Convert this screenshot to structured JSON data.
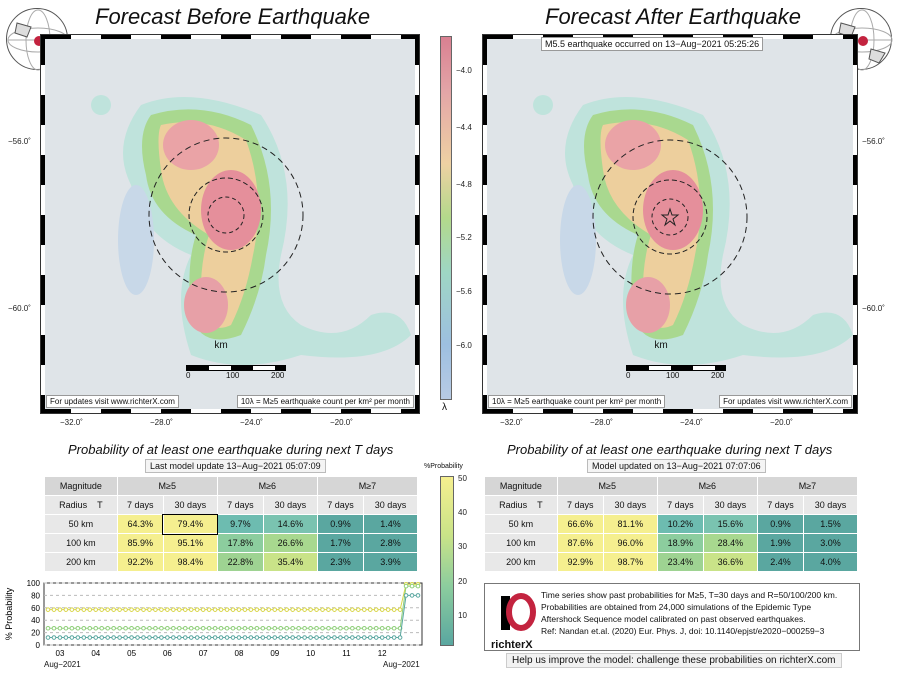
{
  "left": {
    "title": "Forecast Before Earthquake",
    "footer_left": "For updates visit www.richterX.com",
    "footer_right": "10λ = M≥5 earthquake count per km² per month",
    "lat_ticks": [
      "−56.0˚",
      "−60.0˚"
    ],
    "lon_ticks": [
      "−32.0˚",
      "−28.0˚",
      "−24.0˚",
      "−20.0˚"
    ]
  },
  "right": {
    "title": "Forecast After Earthquake",
    "event_note": "M5.5 earthquake occurred on 13−Aug−2021 05:25:26",
    "footer_left": "10λ = M≥5 earthquake count per km² per month",
    "footer_right": "For updates visit www.richterX.com",
    "lat_ticks": [
      "−56.0˚",
      "−60.0˚"
    ],
    "lon_ticks": [
      "−32.0˚",
      "−28.0˚",
      "−24.0˚",
      "−20.0˚"
    ]
  },
  "scale_bar": {
    "unit": "km",
    "labels": [
      "0",
      "100",
      "200"
    ]
  },
  "colorbar": {
    "ticks": [
      "−4.0",
      "−4.4",
      "−4.8",
      "−5.2",
      "−5.6",
      "−6.0"
    ],
    "symbol": "λ"
  },
  "prob_colorbar": {
    "title": "%Probability",
    "ticks": [
      "50",
      "40",
      "30",
      "20",
      "10"
    ]
  },
  "table_left": {
    "title": "Probability of at least one earthquake during next T days",
    "subtitle": "Last model update 13−Aug−2021 05:07:09",
    "mag_header": "Magnitude",
    "radius_header": "Radius",
    "t_header": "T",
    "mags": [
      "M≥5",
      "M≥6",
      "M≥7"
    ],
    "periods": [
      "7 days",
      "30 days",
      "7 days",
      "30 days",
      "7 days",
      "30 days"
    ],
    "rows": [
      {
        "radius": "50 km",
        "values": [
          "64.3%",
          "79.4%",
          "9.7%",
          "14.6%",
          "0.9%",
          "1.4%"
        ]
      },
      {
        "radius": "100 km",
        "values": [
          "85.9%",
          "95.1%",
          "17.8%",
          "26.6%",
          "1.7%",
          "2.8%"
        ]
      },
      {
        "radius": "200 km",
        "values": [
          "92.2%",
          "98.4%",
          "22.8%",
          "35.4%",
          "2.3%",
          "3.9%"
        ]
      }
    ]
  },
  "table_right": {
    "title": "Probability of at least one earthquake during next T days",
    "subtitle": "Model updated on 13−Aug−2021 07:07:06",
    "mag_header": "Magnitude",
    "radius_header": "Radius",
    "t_header": "T",
    "mags": [
      "M≥5",
      "M≥6",
      "M≥7"
    ],
    "periods": [
      "7 days",
      "30 days",
      "7 days",
      "30 days",
      "7 days",
      "30 days"
    ],
    "rows": [
      {
        "radius": "50 km",
        "values": [
          "66.6%",
          "81.1%",
          "10.2%",
          "15.6%",
          "0.9%",
          "1.5%"
        ]
      },
      {
        "radius": "100 km",
        "values": [
          "87.6%",
          "96.0%",
          "18.9%",
          "28.4%",
          "1.9%",
          "3.0%"
        ]
      },
      {
        "radius": "200 km",
        "values": [
          "92.9%",
          "98.7%",
          "23.4%",
          "36.6%",
          "2.4%",
          "4.0%"
        ]
      }
    ]
  },
  "chart_data": {
    "type": "line",
    "ylabel": "% Probability",
    "ylim": [
      0,
      100
    ],
    "yticks": [
      "100",
      "80",
      "60",
      "40",
      "20",
      "0"
    ],
    "xticks": [
      "03",
      "04",
      "05",
      "06",
      "07",
      "08",
      "09",
      "10",
      "11",
      "12"
    ],
    "x_start_label": "Aug−2021",
    "x_end_label": "Aug−2021",
    "series": [
      {
        "color": "#d9d64a",
        "values": [
          57,
          57,
          57,
          57,
          57,
          57,
          57,
          57,
          57,
          57,
          57,
          57,
          57,
          57,
          57,
          57,
          57,
          57,
          57,
          57,
          57,
          57,
          57,
          57,
          57,
          57,
          57,
          57,
          57,
          57,
          57,
          57,
          57,
          57,
          57,
          57,
          57,
          57,
          57,
          57,
          57,
          57,
          57,
          57,
          57,
          57,
          57,
          57,
          57,
          57,
          57,
          57,
          57,
          57,
          57,
          57,
          57,
          57,
          57,
          57,
          98,
          98,
          98
        ]
      },
      {
        "color": "#8fcf7a",
        "values": [
          27,
          27,
          27,
          27,
          27,
          27,
          27,
          27,
          27,
          27,
          27,
          27,
          27,
          27,
          27,
          27,
          27,
          27,
          27,
          27,
          27,
          27,
          27,
          27,
          27,
          27,
          27,
          27,
          27,
          27,
          27,
          27,
          27,
          27,
          27,
          27,
          27,
          27,
          27,
          27,
          27,
          27,
          27,
          27,
          27,
          27,
          27,
          27,
          27,
          27,
          27,
          27,
          27,
          27,
          27,
          27,
          27,
          27,
          27,
          27,
          95,
          95,
          95
        ]
      },
      {
        "color": "#5aa7a0",
        "values": [
          12,
          12,
          12,
          12,
          12,
          12,
          12,
          12,
          12,
          12,
          12,
          12,
          12,
          12,
          12,
          12,
          12,
          12,
          12,
          12,
          12,
          12,
          12,
          12,
          12,
          12,
          12,
          12,
          12,
          12,
          12,
          12,
          12,
          12,
          12,
          12,
          12,
          12,
          12,
          12,
          12,
          12,
          12,
          12,
          12,
          12,
          12,
          12,
          12,
          12,
          12,
          12,
          12,
          12,
          12,
          12,
          12,
          12,
          12,
          12,
          80,
          80,
          80
        ]
      }
    ]
  },
  "info": {
    "logo_text": "richterX",
    "lines": [
      "Time series show past probabilities for M≥5, T=30 days and R=50/100/200 km.",
      "Probabilities are obtained from 24,000 simulations of the Epidemic Type",
      "Aftershock Sequence model calibrated on past observed earthquakes.",
      "Ref: Nandan et.al. (2020) Eur. Phys. J, doi: 10.1140/epjst/e2020−000259−3"
    ],
    "help": "Help us improve the model: challenge these probabilities on richterX.com"
  },
  "colors": {
    "yellow": "#f2f08a",
    "green": "#9fd39a",
    "teal": "#5fb3aa"
  }
}
